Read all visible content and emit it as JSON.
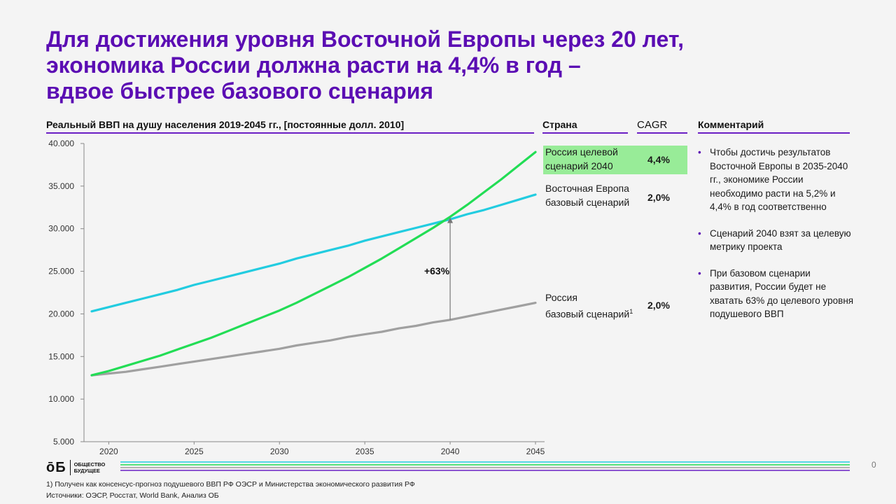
{
  "title": {
    "line1": "Для достижения уровня Восточной Европы через 20 лет,",
    "line2": "экономика России должна расти на 4,4% в год –",
    "line3": "вдвое быстрее базового сценария"
  },
  "headers": {
    "chart": "Реальный ВВП на душу населения 2019-2045 гг., [постоянные долл. 2010]",
    "country": "Страна",
    "cagr": "CAGR",
    "comment": "Комментарий"
  },
  "chart_data": {
    "type": "line",
    "x": [
      2019,
      2020,
      2021,
      2022,
      2023,
      2024,
      2025,
      2026,
      2027,
      2028,
      2029,
      2030,
      2031,
      2032,
      2033,
      2034,
      2035,
      2036,
      2037,
      2038,
      2039,
      2040,
      2041,
      2042,
      2043,
      2044,
      2045
    ],
    "series": [
      {
        "name": "Россия целевой сценарий 2040",
        "color": "#22dd55",
        "values": [
          12800,
          13300,
          13900,
          14500,
          15100,
          15800,
          16500,
          17200,
          18000,
          18800,
          19600,
          20400,
          21300,
          22300,
          23300,
          24300,
          25400,
          26500,
          27700,
          28900,
          30100,
          31400,
          32800,
          34300,
          35800,
          37400,
          39000
        ]
      },
      {
        "name": "Восточная Европа базовый сценарий",
        "color": "#22cce0",
        "values": [
          20300,
          20800,
          21300,
          21800,
          22300,
          22800,
          23400,
          23900,
          24400,
          24900,
          25400,
          25900,
          26500,
          27000,
          27500,
          28000,
          28600,
          29100,
          29600,
          30100,
          30600,
          31100,
          31700,
          32200,
          32800,
          33400,
          34000
        ]
      },
      {
        "name": "Россия базовый сценарий",
        "color": "#a0a0a0",
        "values": [
          12800,
          13000,
          13200,
          13500,
          13800,
          14100,
          14400,
          14700,
          15000,
          15300,
          15600,
          15900,
          16300,
          16600,
          16900,
          17300,
          17600,
          17900,
          18300,
          18600,
          19000,
          19300,
          19700,
          20100,
          20500,
          20900,
          21300
        ]
      }
    ],
    "xticks": [
      "2020",
      "2025",
      "2030",
      "2035",
      "2040",
      "2045"
    ],
    "yticks": [
      "5.000",
      "10.000",
      "15.000",
      "20.000",
      "25.000",
      "30.000",
      "35.000",
      "40.000"
    ],
    "ylim": [
      5000,
      40000
    ],
    "xlim": [
      2019,
      2045
    ],
    "annotation": {
      "label": "+63%",
      "x": 2040,
      "from": 19300,
      "to": 31400
    }
  },
  "legend": {
    "items": [
      {
        "label_line1": "Россия целевой",
        "label_line2": "сценарий 2040",
        "cagr": "4,4%"
      },
      {
        "label_line1": "Восточная Европа",
        "label_line2": "базовый сценарий",
        "cagr": "2,0%"
      },
      {
        "label_line1": "Россия",
        "label_line2": "базовый сценарий",
        "sup": "1",
        "cagr": "2,0%"
      }
    ]
  },
  "comments": [
    "Чтобы достичь результатов Восточной Европы в 2035-2040 гг., экономике России необходимо расти на 5,2% и 4,4% в год соответственно",
    "Сценарий 2040 взят за целевую метрику проекта",
    "При базовом сценарии развития, России будет не хватать 63% до целевого уровня подушевого ВВП"
  ],
  "logo": {
    "mark": "ōБ",
    "line1": "ОБЩЕСТВО",
    "line2": "БУДУЩЕЕ"
  },
  "page_number": "0",
  "footnotes": {
    "line1": "1) Получен как консенсус-прогноз подушевого ВВП РФ ОЭСР и Министерства экономического развития РФ",
    "line2": "Источники: ОЭСР, Росстат, World Bank, Анализ ОБ"
  }
}
